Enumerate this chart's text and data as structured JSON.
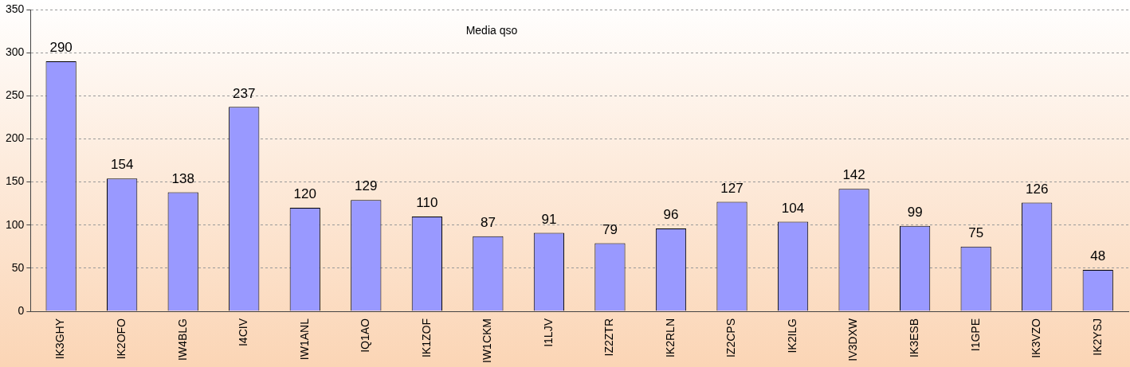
{
  "chart_data": {
    "type": "bar",
    "categories": [
      "IK3GHY",
      "IK2OFO",
      "IW4BLG",
      "I4CIV",
      "IW1ANL",
      "IQ1AO",
      "IK1ZOF",
      "IW1CKM",
      "I1LJV",
      "IZ2ZTR",
      "IK2RLN",
      "IZ2CPS",
      "IK2ILG",
      "IV3DXW",
      "IK3ESB",
      "I1GPE",
      "IK3VZO",
      "IK2YSJ"
    ],
    "values": [
      290,
      154,
      138,
      237,
      120,
      129,
      110,
      87,
      91,
      79,
      96,
      127,
      104,
      142,
      99,
      75,
      126,
      48
    ],
    "color": "#9999ff",
    "ylim": [
      0,
      350
    ],
    "yticks": [
      0,
      50,
      100,
      150,
      200,
      250,
      300,
      350
    ],
    "grid": "y",
    "legend": false,
    "data_labels": true,
    "annotations": [
      "Media qso"
    ]
  }
}
